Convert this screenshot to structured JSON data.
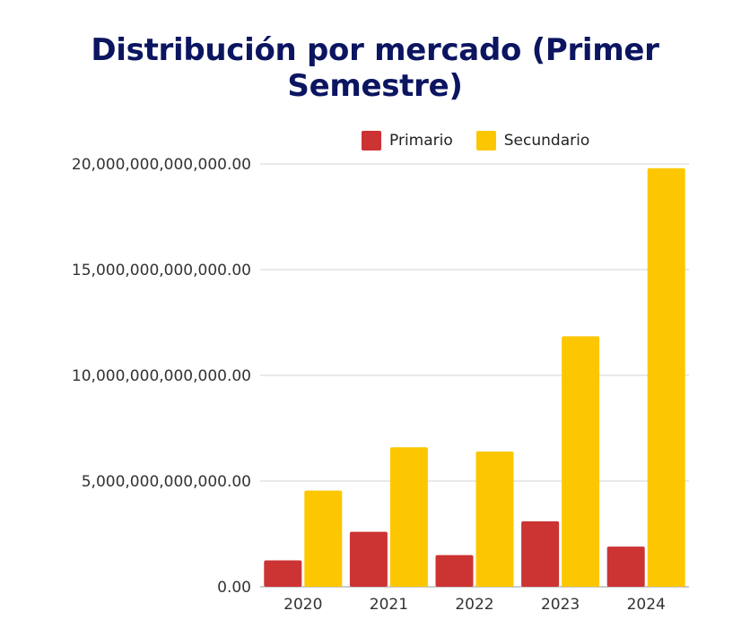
{
  "colors": {
    "primario": "#cc3333",
    "secundario": "#fcc700",
    "title": "#0b1560",
    "grid": "#d3d3d3"
  },
  "chart_data": {
    "type": "bar",
    "title": "Distribución por mercado (Primer Semestre)",
    "xlabel": "",
    "ylabel": "",
    "categories": [
      "2020",
      "2021",
      "2022",
      "2023",
      "2024"
    ],
    "series": [
      {
        "name": "Primario",
        "values": [
          1250000000000,
          2600000000000,
          1500000000000,
          3100000000000,
          1900000000000
        ]
      },
      {
        "name": "Secundario",
        "values": [
          4550000000000,
          6600000000000,
          6400000000000,
          11850000000000,
          19800000000000
        ]
      }
    ],
    "ylim": [
      0,
      20000000000000
    ],
    "yticks": [
      0,
      5000000000000,
      10000000000000,
      15000000000000,
      20000000000000
    ],
    "ytick_labels": [
      "0.00",
      "5,000,000,000,000.00",
      "10,000,000,000,000.00",
      "15,000,000,000,000.00",
      "20,000,000,000,000.00"
    ],
    "grid": true,
    "legend_position": "top"
  }
}
